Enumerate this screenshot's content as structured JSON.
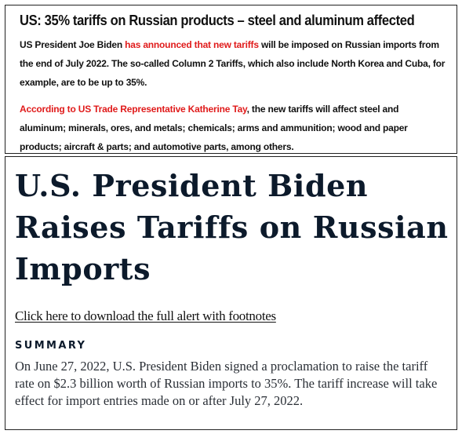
{
  "card": {
    "title": "US: 35% tariffs on Russian products – steel and aluminum affected",
    "p1_pre": "US President Joe Biden ",
    "p1_link": "has announced that new tariffs",
    "p1_post": " will be imposed on Russian imports from the end of July 2022. The so-called Column 2 Tariffs, which also include North Korea and Cuba, for example, are to be up to 35%.",
    "p2_link": "According to US Trade Representative Katherine Tay",
    "p2_post": ", the new tariffs will affect steel and aluminum; minerals, ores, and metals; chemicals; arms and ammunition; wood and paper products; aircraft & parts; and automotive parts, among others.",
    "link_color": "#e01b1b"
  },
  "article": {
    "headline": "U.S. President Biden Raises Tariffs on Russian Imports",
    "download_link": "Click here to download the full alert with footnotes",
    "summary_heading": "SUMMARY",
    "summary_text": "On June 27, 2022, U.S. President Biden signed a proclamation to raise the tariff rate on $2.3 billion worth of Russian imports to 35%. The tariff increase will take effect for import entries made on or after July 27, 2022."
  }
}
